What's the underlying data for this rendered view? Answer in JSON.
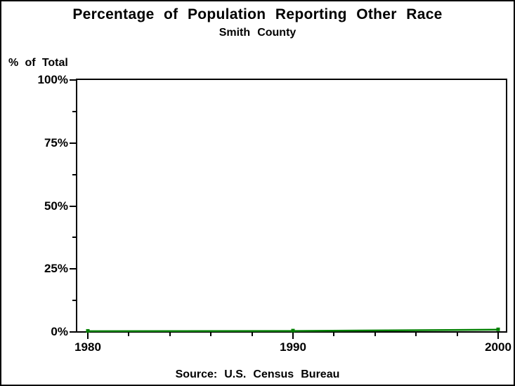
{
  "chart_data": {
    "type": "line",
    "title": "Percentage of Population Reporting Other Race",
    "subtitle": "Smith County",
    "ylabel": "% of Total",
    "xlabel": "",
    "source": "Source: U.S. Census Bureau",
    "x": [
      1980,
      1990,
      2000
    ],
    "values": [
      0.3,
      0.4,
      0.9
    ],
    "x_tick_labels": [
      "1980",
      "1990",
      "2000"
    ],
    "x_major_ticks": [
      1980,
      1990,
      2000
    ],
    "x_minor_step": 2,
    "y_tick_labels": [
      "0%",
      "25%",
      "50%",
      "75%",
      "100%"
    ],
    "y_major_ticks": [
      0,
      25,
      50,
      75,
      100
    ],
    "y_minor_step": 12.5,
    "xlim": [
      1980,
      2000
    ],
    "ylim": [
      0,
      100
    ],
    "grid": false,
    "frame": true,
    "legend": "none",
    "marker": "square",
    "line_color": "#008000",
    "axis_color": "#000000",
    "background_color": "#ffffff"
  }
}
